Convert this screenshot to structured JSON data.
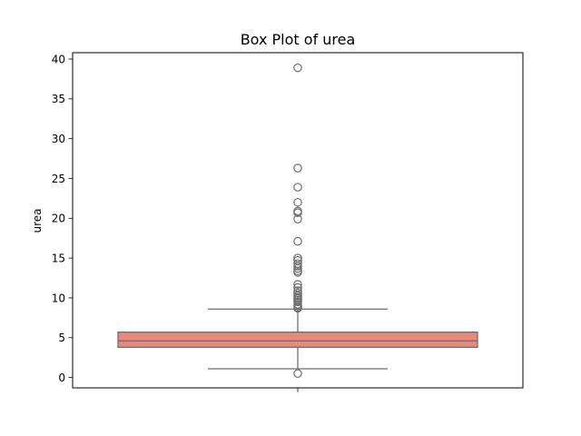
{
  "chart_data": {
    "type": "box",
    "title": "Box Plot of urea",
    "xlabel": "",
    "ylabel": "urea",
    "ylim": [
      -1.3,
      40.8
    ],
    "yticks": [
      0,
      5,
      10,
      15,
      20,
      25,
      30,
      35,
      40
    ],
    "ytick_labels": [
      "0",
      "5",
      "10",
      "15",
      "20",
      "25",
      "30",
      "35",
      "40"
    ],
    "grid": false,
    "legend": "none",
    "box_color": "#e8897c",
    "line_color": "#6e6e6e",
    "box": {
      "whisker_low": 1.1,
      "q1": 3.8,
      "median": 4.6,
      "q3": 5.7,
      "whisker_high": 8.6
    },
    "outliers": [
      0.5,
      8.7,
      8.8,
      9.0,
      9.2,
      9.5,
      9.7,
      9.9,
      10.1,
      10.3,
      10.6,
      10.9,
      11.3,
      11.7,
      13.2,
      13.4,
      13.7,
      14.0,
      14.3,
      14.7,
      15.0,
      17.1,
      19.9,
      20.7,
      20.9,
      22.0,
      23.9,
      26.3,
      38.9
    ]
  }
}
